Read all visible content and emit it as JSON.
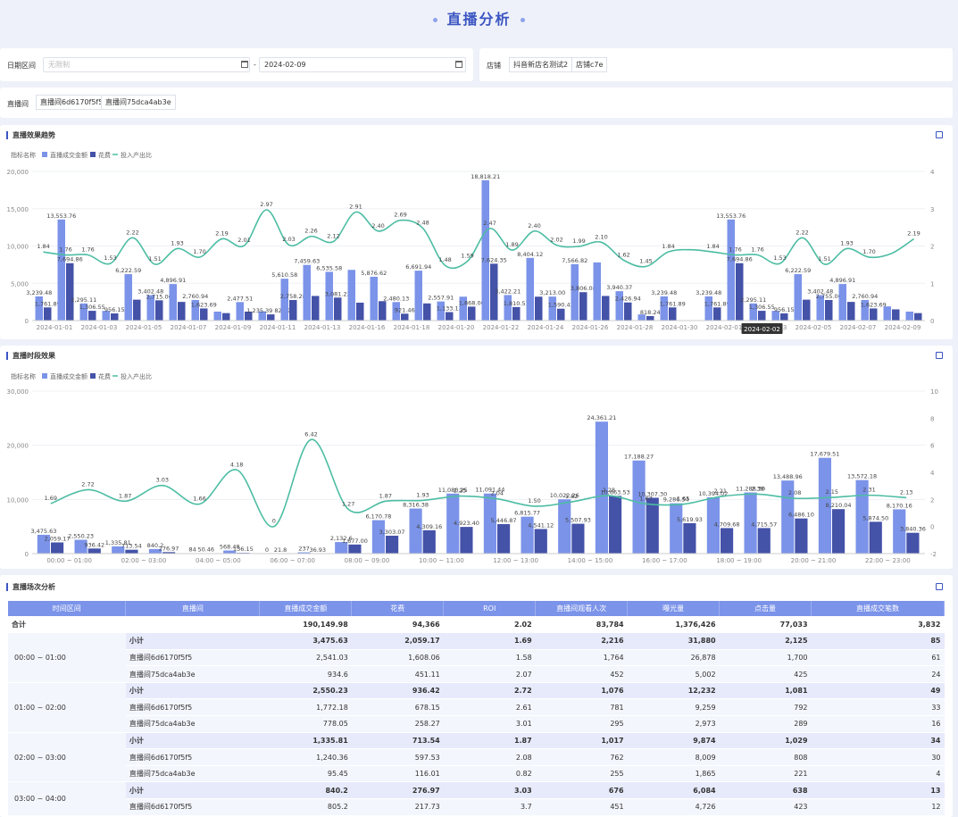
{
  "page_title": "直播分析",
  "filters": {
    "date_label": "日期区间",
    "date_start_placeholder": "无限制",
    "date_sep": "-",
    "date_end": "2024-02-09",
    "shop_label": "店铺",
    "shops": [
      "抖音新店名测试2",
      "店铺c7e"
    ],
    "room_label": "直播间",
    "rooms": [
      "直播间6d6170f5f5",
      "直播间75dca4ab3e"
    ]
  },
  "colors": {
    "gmv": "#7b93e9",
    "cost": "#4452a8",
    "roi": "#4cbda3"
  },
  "icons": [
    "download-icon"
  ],
  "chart_data": [
    {
      "type": "bar",
      "title": "直播效果趋势",
      "legend_title": "指标名称",
      "legend": [
        "直播成交金额",
        "花费",
        "投入产出比"
      ],
      "ylim": [
        0,
        20000
      ],
      "y_ticks": [
        "20,000",
        "15,000",
        "10,000",
        "5,000",
        "0"
      ],
      "y2lim": [
        0,
        4
      ],
      "y2_ticks": [
        "4",
        "3",
        "2",
        "1",
        "0"
      ],
      "x_tick_labels": [
        "2024-01-01",
        "2024-01-03",
        "2024-01-05",
        "2024-01-07",
        "2024-01-09",
        "2024-01-11",
        "2024-01-13",
        "2024-01-16",
        "2024-01-18",
        "2024-01-20",
        "2024-01-22",
        "2024-01-24",
        "2024-01-26",
        "2024-01-28",
        "2024-01-30",
        "2024-02-01",
        "2024-02-03",
        "2024-02-05",
        "2024-02-07",
        "2024-02-09"
      ],
      "tooltip": "2024-02-02",
      "series": [
        {
          "name": "直播成交金额",
          "values": [
            3239.48,
            13553.76,
            2295.11,
            1300,
            6222.59,
            3402.48,
            4896.91,
            2760.94,
            1200,
            2477.51,
            1235.39,
            5610.58,
            7459.63,
            6535.58,
            6800,
            5876.62,
            2480.13,
            6691.94,
            2557.91,
            3200,
            18818.21,
            3422.21,
            8404.12,
            3213.0,
            7566.82,
            7800,
            3940.37,
            818.24,
            3239.48,
            0,
            3239.48,
            13553.76,
            2295.11,
            1300,
            6222.59,
            3402.48,
            4896.91,
            2760.94,
            1900,
            1200
          ]
        },
        {
          "name": "花费",
          "values": [
            1761.89,
            7694.86,
            1306.55,
            956.15,
            2800,
            2715.0,
            2500,
            1623.69,
            1000,
            1200,
            825.99,
            2758.28,
            3300,
            3081.22,
            2400,
            2600,
            921.46,
            2300,
            1133.12,
            1868.0,
            7624.35,
            1810.57,
            3200,
            1590.43,
            3806.08,
            3300,
            2426.94,
            600,
            1761.89,
            0,
            1761.89,
            7694.86,
            1306.55,
            956.15,
            2800,
            2755.0,
            2500,
            1623.69,
            1500,
            1000
          ]
        },
        {
          "name": "投入产出比",
          "values": [
            1.84,
            1.76,
            1.76,
            1.53,
            2.22,
            1.51,
            1.93,
            1.7,
            2.19,
            2.01,
            2.97,
            2.03,
            2.26,
            2.12,
            2.91,
            2.4,
            2.69,
            2.48,
            1.48,
            1.59,
            2.47,
            1.89,
            2.4,
            2.02,
            1.99,
            2.1,
            1.62,
            1.45,
            1.84,
            1.9,
            1.84,
            1.76,
            1.76,
            1.53,
            2.22,
            1.51,
            1.93,
            1.7,
            1.8,
            2.19
          ]
        }
      ],
      "data_labels": {
        "gmv": [
          "3,239.48",
          "13,553.76",
          "2,295.11",
          "",
          "6,222.59",
          "3,402.48",
          "4,896.91",
          "2,760.94",
          "",
          "2,477.51",
          "",
          "5,610.58",
          "7,459.63",
          "6,535.58",
          "",
          "5,876.62",
          "2,480.13",
          "6,691.94",
          "2,557.91",
          "",
          "18,818.21",
          "3,422.21",
          "8,404.12",
          "3,213.00",
          "7,566.82",
          "",
          "3,940.37",
          "",
          "3,239.48",
          "",
          "3,239.48",
          "13,553.76",
          "2,295.11",
          "",
          "6,222.59",
          "3,402.48",
          "4,896.91",
          "2,760.94",
          "",
          ""
        ],
        "cost": [
          "1,761.89",
          "7,694.86",
          "1,306.55",
          "956.15",
          "",
          "2,715.00",
          "",
          "1,623.69",
          "",
          "",
          "1,235.39 825.99",
          "2,758.28",
          "",
          "3,081.22",
          "",
          "",
          "921.46",
          "",
          "1,133.12",
          "1,868.00",
          "7,624.35",
          "1,810.57",
          "",
          "1,590.43",
          "3,806.08",
          "",
          "2,426.94",
          "818.24",
          "1,761.89",
          "",
          "1,761.89",
          "7,694.86",
          "1,306.55",
          "956.15",
          "",
          "2,755.00",
          "",
          "1,623.69",
          "",
          ""
        ],
        "roi": [
          "1.84",
          "1.76",
          "1.76",
          "1.53",
          "2.22",
          "1.51",
          "1.93",
          "1.70",
          "2.19",
          "2.01",
          "2.97",
          "2.03",
          "2.26",
          "2.12",
          "2.91",
          "2.40",
          "2.69",
          "2.48",
          "1.48",
          "1.59",
          "2.47",
          "1.89",
          "2.40",
          "2.02",
          "1.99",
          "2.10",
          "1.62",
          "1.45",
          "1.84",
          "",
          "1.84",
          "1.76",
          "1.76",
          "1.53",
          "2.22",
          "1.51",
          "1.93",
          "1.70",
          "",
          "2.19"
        ]
      }
    },
    {
      "type": "bar",
      "title": "直播时段效果",
      "legend_title": "指标名称",
      "legend": [
        "直播成交金额",
        "花费",
        "投入产出比"
      ],
      "ylim": [
        0,
        30000
      ],
      "y_ticks": [
        "30,000",
        "20,000",
        "10,000",
        "0"
      ],
      "y2lim": [
        -2,
        10
      ],
      "y2_ticks": [
        "10",
        "8",
        "6",
        "4",
        "2",
        "0",
        "-2"
      ],
      "x_tick_labels": [
        "00:00 ~ 01:00",
        "02:00 ~ 03:00",
        "04:00 ~ 05:00",
        "06:00 ~ 07:00",
        "08:00 ~ 09:00",
        "10:00 ~ 11:00",
        "12:00 ~ 13:00",
        "14:00 ~ 15:00",
        "16:00 ~ 17:00",
        "18:00 ~ 19:00",
        "20:00 ~ 21:00",
        "22:00 ~ 23:00"
      ],
      "series": [
        {
          "name": "直播成交金额",
          "values": [
            3475.63,
            2550.23,
            1335.81,
            840.2,
            84,
            568.48,
            0,
            237,
            2132.6,
            6170.78,
            8316.38,
            11080.25,
            11091.44,
            6815.77,
            10022.26,
            24361.21,
            17188.27,
            9286.54,
            10394.02,
            11288.3,
            13488.96,
            17679.51,
            13572.18,
            8170.16
          ]
        },
        {
          "name": "花费",
          "values": [
            2059.17,
            936.42,
            713.54,
            276.97,
            50.46,
            136.15,
            21.8,
            36.93,
            1677.0,
            3303.07,
            4309.16,
            4923.4,
            5446.87,
            4541.12,
            5507.93,
            10663.53,
            10307.3,
            5619.93,
            4709.68,
            4715.57,
            6486.1,
            8210.04,
            5874.5,
            3840.36
          ]
        },
        {
          "name": "投入产出比",
          "values": [
            1.69,
            2.72,
            1.87,
            3.03,
            1.66,
            4.18,
            0,
            6.42,
            1.27,
            1.87,
            1.93,
            2.25,
            2.04,
            1.5,
            1.82,
            2.28,
            1.67,
            1.65,
            2.21,
            2.39,
            2.08,
            2.15,
            2.31,
            2.13
          ]
        }
      ],
      "data_labels": {
        "gmv": [
          "3,475.63",
          "2,550.23",
          "1,335.81",
          "840.2",
          "84",
          "568.48",
          "0",
          "237",
          "2,132.6",
          "6,170.78",
          "8,316.38",
          "11,080.25",
          "11,091.44",
          "6,815.77",
          "10,022.26",
          "24,361.21",
          "17,188.27",
          "9,286.54",
          "10,394.02",
          "11,288.30",
          "13,488.96",
          "17,679.51",
          "13,572.18",
          "8,170.16"
        ],
        "cost": [
          "2,059.17",
          "936.42",
          "713.54",
          "276.97",
          "50.46",
          "136.15",
          "21.8",
          "36.93",
          "1,677.00",
          "3,303.07",
          "4,309.16",
          "4,923.40",
          "5,446.87",
          "4,541.12",
          "5,507.93",
          "10,663.53",
          "10,307.30",
          "5,619.93",
          "4,709.68",
          "4,715.57",
          "6,486.10",
          "8,210.04",
          "5,874.50",
          "3,840.36"
        ],
        "roi": [
          "1.69",
          "2.72",
          "1.87",
          "3.03",
          "1.66",
          "4.18",
          "0",
          "6.42",
          "1.27",
          "1.87",
          "1.93",
          "2.25",
          "2.04",
          "1.50",
          "1.82",
          "2.28",
          "1.67",
          "1.65",
          "2.21",
          "2.39",
          "2.08",
          "2.15",
          "2.31",
          "2.13"
        ]
      }
    }
  ],
  "table_section_title": "直播场次分析",
  "table": {
    "headers": [
      "时间区间",
      "直播间",
      "直播成交金额",
      "花费",
      "ROI",
      "直播间观看人次",
      "曝光量",
      "点击量",
      "直播成交笔数"
    ],
    "total": {
      "label": "合计",
      "values": [
        "190,149.98",
        "94,366",
        "2.02",
        "83,784",
        "1,376,426",
        "77,033",
        "3,832"
      ]
    },
    "groups": [
      {
        "interval": "00:00 ~ 01:00",
        "rows": [
          {
            "room": "小计",
            "values": [
              "3,475.63",
              "2,059.17",
              "1.69",
              "2,216",
              "31,880",
              "2,125",
              "85"
            ]
          },
          {
            "room": "直播间6d6170f5f5",
            "values": [
              "2,541.03",
              "1,608.06",
              "1.58",
              "1,764",
              "26,878",
              "1,700",
              "61"
            ]
          },
          {
            "room": "直播间75dca4ab3e",
            "values": [
              "934.6",
              "451.11",
              "2.07",
              "452",
              "5,002",
              "425",
              "24"
            ]
          }
        ]
      },
      {
        "interval": "01:00 ~ 02:00",
        "rows": [
          {
            "room": "小计",
            "values": [
              "2,550.23",
              "936.42",
              "2.72",
              "1,076",
              "12,232",
              "1,081",
              "49"
            ]
          },
          {
            "room": "直播间6d6170f5f5",
            "values": [
              "1,772.18",
              "678.15",
              "2.61",
              "781",
              "9,259",
              "792",
              "33"
            ]
          },
          {
            "room": "直播间75dca4ab3e",
            "values": [
              "778.05",
              "258.27",
              "3.01",
              "295",
              "2,973",
              "289",
              "16"
            ]
          }
        ]
      },
      {
        "interval": "02:00 ~ 03:00",
        "rows": [
          {
            "room": "小计",
            "values": [
              "1,335.81",
              "713.54",
              "1.87",
              "1,017",
              "9,874",
              "1,029",
              "34"
            ]
          },
          {
            "room": "直播间6d6170f5f5",
            "values": [
              "1,240.36",
              "597.53",
              "2.08",
              "762",
              "8,009",
              "808",
              "30"
            ]
          },
          {
            "room": "直播间75dca4ab3e",
            "values": [
              "95.45",
              "116.01",
              "0.82",
              "255",
              "1,865",
              "221",
              "4"
            ]
          }
        ]
      },
      {
        "interval": "03:00 ~ 04:00",
        "rows": [
          {
            "room": "小计",
            "values": [
              "840.2",
              "276.97",
              "3.03",
              "676",
              "6,084",
              "638",
              "13"
            ]
          },
          {
            "room": "直播间6d6170f5f5",
            "values": [
              "805.2",
              "217.73",
              "3.7",
              "451",
              "4,726",
              "423",
              "12"
            ]
          }
        ]
      }
    ]
  }
}
